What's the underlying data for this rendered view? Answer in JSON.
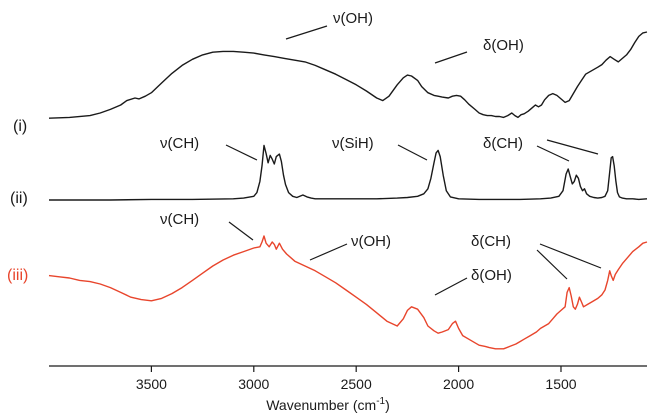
{
  "chart_data": {
    "type": "line",
    "title": "",
    "xlabel_main": "Wavenumber (cm",
    "xlabel_sup": "-1",
    "xlabel_end": ")",
    "x_reversed": true,
    "xlim": [
      4000,
      1080
    ],
    "y_axis_shown": false,
    "grid": false,
    "xticks": [
      3500,
      3000,
      2500,
      2000,
      1500
    ],
    "xtick_labels": [
      "3500",
      "3000",
      "2500",
      "2000",
      "1500"
    ],
    "series": [
      {
        "name": "(i)",
        "color": "#1a1a1a",
        "x": [
          4000,
          3900,
          3800,
          3750,
          3700,
          3650,
          3620,
          3580,
          3560,
          3530,
          3500,
          3450,
          3400,
          3350,
          3300,
          3250,
          3200,
          3150,
          3100,
          3050,
          3000,
          2950,
          2900,
          2850,
          2800,
          2750,
          2700,
          2650,
          2600,
          2550,
          2500,
          2450,
          2400,
          2370,
          2340,
          2300,
          2270,
          2250,
          2230,
          2200,
          2180,
          2150,
          2120,
          2100,
          2080,
          2050,
          2030,
          2010,
          1990,
          1970,
          1950,
          1920,
          1900,
          1880,
          1860,
          1840,
          1820,
          1800,
          1780,
          1760,
          1740,
          1725,
          1710,
          1695,
          1680,
          1660,
          1640,
          1625,
          1610,
          1595,
          1580,
          1560,
          1540,
          1520,
          1500,
          1480,
          1460,
          1440,
          1420,
          1400,
          1380,
          1350,
          1320,
          1300,
          1280,
          1260,
          1240,
          1220,
          1200,
          1180,
          1160,
          1140,
          1120,
          1100,
          1080
        ],
        "y": [
          0.02,
          0.03,
          0.05,
          0.08,
          0.12,
          0.17,
          0.22,
          0.25,
          0.24,
          0.27,
          0.31,
          0.42,
          0.53,
          0.62,
          0.69,
          0.74,
          0.77,
          0.78,
          0.78,
          0.77,
          0.76,
          0.74,
          0.72,
          0.7,
          0.68,
          0.66,
          0.62,
          0.57,
          0.52,
          0.46,
          0.4,
          0.33,
          0.25,
          0.22,
          0.27,
          0.4,
          0.48,
          0.51,
          0.5,
          0.45,
          0.38,
          0.31,
          0.28,
          0.27,
          0.26,
          0.25,
          0.27,
          0.28,
          0.27,
          0.23,
          0.18,
          0.12,
          0.08,
          0.06,
          0.05,
          0.05,
          0.04,
          0.04,
          0.03,
          0.05,
          0.08,
          0.05,
          0.03,
          0.06,
          0.07,
          0.1,
          0.14,
          0.17,
          0.15,
          0.17,
          0.23,
          0.28,
          0.3,
          0.28,
          0.24,
          0.2,
          0.22,
          0.3,
          0.38,
          0.45,
          0.52,
          0.56,
          0.6,
          0.63,
          0.68,
          0.72,
          0.69,
          0.66,
          0.7,
          0.74,
          0.8,
          0.88,
          0.95,
          0.99,
          1.0
        ]
      },
      {
        "name": "(ii)",
        "color": "#1a1a1a",
        "x": [
          4000,
          3700,
          3500,
          3300,
          3100,
          3050,
          3000,
          2985,
          2970,
          2960,
          2950,
          2940,
          2930,
          2920,
          2910,
          2900,
          2890,
          2875,
          2865,
          2855,
          2845,
          2830,
          2810,
          2790,
          2760,
          2740,
          2720,
          2700,
          2650,
          2600,
          2500,
          2400,
          2300,
          2250,
          2200,
          2170,
          2150,
          2135,
          2120,
          2110,
          2100,
          2090,
          2075,
          2060,
          2040,
          2000,
          1900,
          1800,
          1700,
          1600,
          1550,
          1510,
          1490,
          1475,
          1465,
          1455,
          1445,
          1435,
          1425,
          1415,
          1405,
          1395,
          1385,
          1375,
          1360,
          1340,
          1320,
          1300,
          1285,
          1272,
          1262,
          1255,
          1248,
          1240,
          1232,
          1224,
          1215,
          1200,
          1180,
          1150,
          1120,
          1080
        ],
        "y": [
          0.0,
          0.0,
          0.01,
          0.01,
          0.02,
          0.03,
          0.06,
          0.12,
          0.3,
          0.55,
          0.88,
          0.75,
          0.6,
          0.72,
          0.66,
          0.58,
          0.7,
          0.74,
          0.62,
          0.4,
          0.25,
          0.12,
          0.06,
          0.04,
          0.08,
          0.05,
          0.03,
          0.02,
          0.02,
          0.02,
          0.02,
          0.02,
          0.03,
          0.04,
          0.06,
          0.1,
          0.18,
          0.35,
          0.6,
          0.76,
          0.8,
          0.7,
          0.4,
          0.15,
          0.05,
          0.02,
          0.01,
          0.01,
          0.01,
          0.02,
          0.03,
          0.06,
          0.15,
          0.42,
          0.5,
          0.38,
          0.26,
          0.3,
          0.4,
          0.35,
          0.22,
          0.15,
          0.18,
          0.1,
          0.06,
          0.04,
          0.03,
          0.04,
          0.06,
          0.15,
          0.45,
          0.68,
          0.7,
          0.55,
          0.3,
          0.12,
          0.05,
          0.03,
          0.02,
          0.02,
          0.01,
          0.02
        ]
      },
      {
        "name": "(iii)",
        "color": "#e8452c",
        "x": [
          4000,
          3950,
          3900,
          3850,
          3800,
          3750,
          3700,
          3650,
          3600,
          3550,
          3500,
          3450,
          3400,
          3350,
          3300,
          3250,
          3200,
          3150,
          3100,
          3050,
          3000,
          2970,
          2960,
          2950,
          2940,
          2925,
          2910,
          2900,
          2890,
          2875,
          2860,
          2840,
          2800,
          2750,
          2700,
          2650,
          2600,
          2550,
          2500,
          2450,
          2400,
          2350,
          2300,
          2270,
          2250,
          2230,
          2200,
          2170,
          2150,
          2120,
          2100,
          2080,
          2050,
          2030,
          2015,
          2000,
          1980,
          1950,
          1920,
          1900,
          1870,
          1850,
          1820,
          1800,
          1780,
          1750,
          1720,
          1700,
          1680,
          1650,
          1620,
          1600,
          1580,
          1560,
          1540,
          1520,
          1500,
          1480,
          1470,
          1460,
          1450,
          1440,
          1430,
          1420,
          1410,
          1400,
          1390,
          1370,
          1350,
          1320,
          1300,
          1285,
          1272,
          1262,
          1255,
          1245,
          1235,
          1220,
          1200,
          1180,
          1150,
          1120,
          1100,
          1080
        ],
        "y": [
          0.62,
          0.61,
          0.6,
          0.58,
          0.57,
          0.55,
          0.52,
          0.48,
          0.44,
          0.42,
          0.41,
          0.43,
          0.47,
          0.52,
          0.58,
          0.64,
          0.7,
          0.75,
          0.79,
          0.82,
          0.85,
          0.86,
          0.9,
          0.95,
          0.89,
          0.86,
          0.9,
          0.88,
          0.84,
          0.89,
          0.84,
          0.8,
          0.74,
          0.7,
          0.66,
          0.61,
          0.56,
          0.5,
          0.44,
          0.38,
          0.31,
          0.24,
          0.2,
          0.26,
          0.33,
          0.36,
          0.34,
          0.27,
          0.2,
          0.16,
          0.14,
          0.15,
          0.17,
          0.22,
          0.24,
          0.18,
          0.12,
          0.09,
          0.06,
          0.04,
          0.03,
          0.02,
          0.01,
          0.01,
          0.01,
          0.03,
          0.05,
          0.07,
          0.09,
          0.12,
          0.15,
          0.18,
          0.2,
          0.22,
          0.26,
          0.3,
          0.33,
          0.36,
          0.48,
          0.52,
          0.45,
          0.36,
          0.34,
          0.38,
          0.44,
          0.4,
          0.36,
          0.38,
          0.4,
          0.43,
          0.46,
          0.5,
          0.58,
          0.66,
          0.62,
          0.58,
          0.63,
          0.67,
          0.72,
          0.76,
          0.82,
          0.86,
          0.89,
          0.9
        ]
      }
    ],
    "annotations": [
      {
        "text": "ν(OH)",
        "series": "(i)"
      },
      {
        "text": "δ(OH)",
        "series": "(i)"
      },
      {
        "text": "ν(CH)",
        "series": "(ii)"
      },
      {
        "text": "ν(SiH)",
        "series": "(ii)"
      },
      {
        "text": "δ(CH)",
        "series": "(ii)"
      },
      {
        "text": "ν(CH)",
        "series": "(iii)"
      },
      {
        "text": "ν(OH)",
        "series": "(iii)"
      },
      {
        "text": "δ(CH)",
        "series": "(iii)"
      },
      {
        "text": "δ(OH)",
        "series": "(iii)"
      }
    ]
  }
}
